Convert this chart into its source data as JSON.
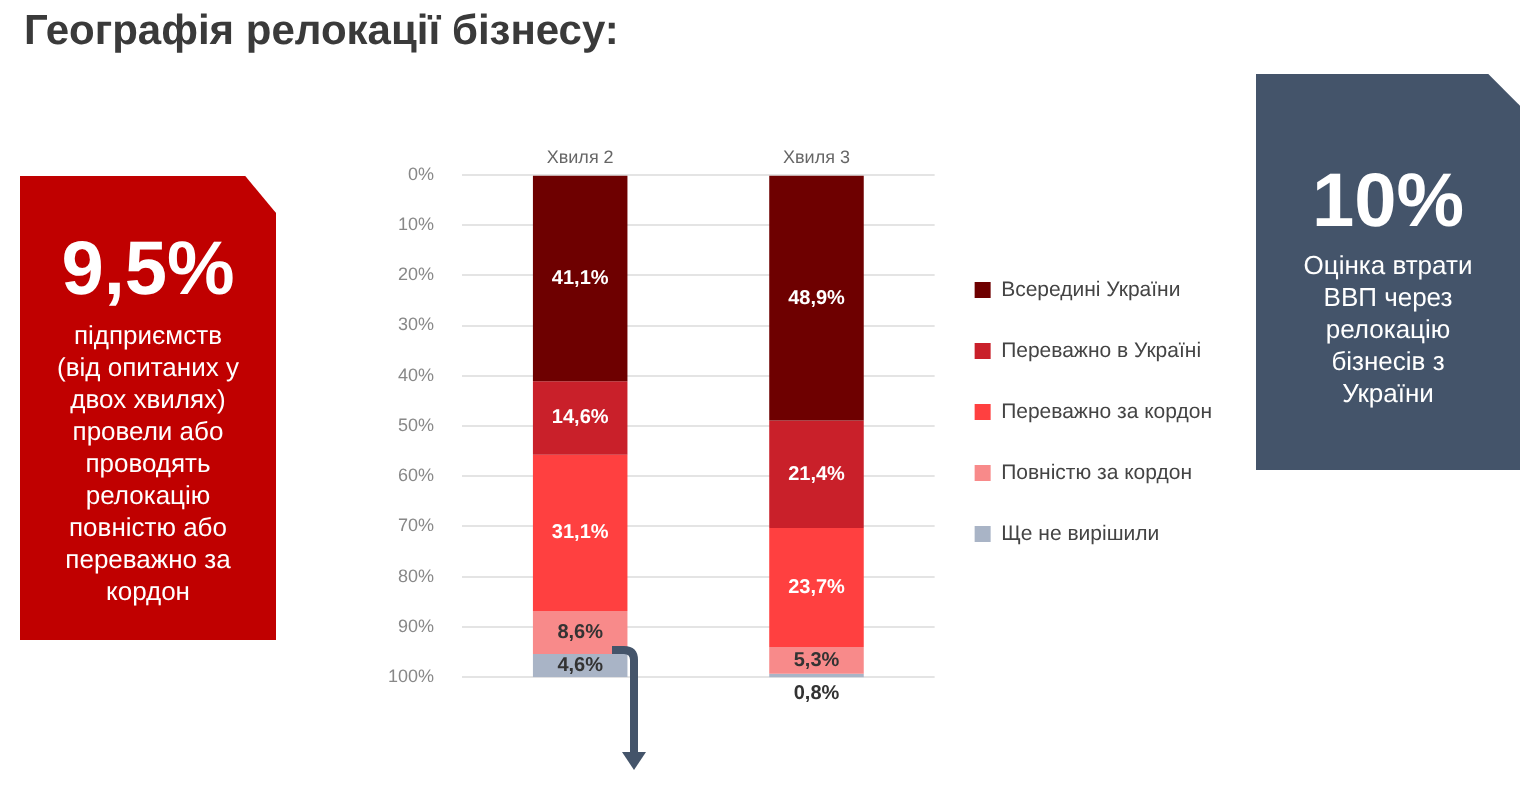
{
  "chart_data": {
    "type": "bar",
    "title": "Географія релокації бізнесу:",
    "categories": [
      "Хвиля 2",
      "Хвиля 3"
    ],
    "stacked": true,
    "series": [
      {
        "name": "Всередині України",
        "color": "#6e0000",
        "values": [
          41.1,
          48.9
        ],
        "value_labels": [
          "41,1%",
          "48,9%"
        ]
      },
      {
        "name": "Переважно в Україні",
        "color": "#c9202a",
        "values": [
          14.6,
          21.4
        ],
        "value_labels": [
          "14,6%",
          "21,4%"
        ]
      },
      {
        "name": "Переважно за кордон",
        "color": "#ff4040",
        "values": [
          31.1,
          23.7
        ],
        "value_labels": [
          "31,1%",
          "23,7%"
        ]
      },
      {
        "name": "Повністю за кордон",
        "color": "#f88a8a",
        "values": [
          8.6,
          5.3
        ],
        "value_labels": [
          "8,6%",
          "5,3%"
        ]
      },
      {
        "name": "Ще не вирішили",
        "color": "#a9b4c6",
        "values": [
          4.6,
          0.8
        ],
        "value_labels": [
          "4,6%",
          "0,8%"
        ]
      }
    ],
    "ylim": [
      100,
      0
    ],
    "yticks": [
      {
        "value": 0,
        "label": "0%"
      },
      {
        "value": 10,
        "label": "10%"
      },
      {
        "value": 20,
        "label": "20%"
      },
      {
        "value": 30,
        "label": "30%"
      },
      {
        "value": 40,
        "label": "40%"
      },
      {
        "value": 50,
        "label": "50%"
      },
      {
        "value": 60,
        "label": "60%"
      },
      {
        "value": 70,
        "label": "70%"
      },
      {
        "value": 80,
        "label": "80%"
      },
      {
        "value": 90,
        "label": "90%"
      },
      {
        "value": 100,
        "label": "100%"
      }
    ],
    "grid": "y",
    "legend": "right",
    "annotations": [
      "9,5%",
      "підприємств (від опитаних у двох хвилях) провели або проводять релокацію повністю або переважно за кордон",
      "10%",
      "Оцінка втрати ВВП через релокацію бізнесів з України"
    ]
  }
}
